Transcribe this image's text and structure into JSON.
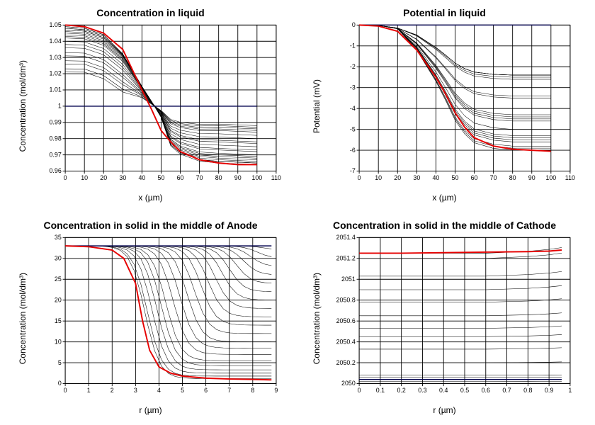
{
  "layout": {
    "cols": 2,
    "rows": 2,
    "figsize": [
      840,
      600
    ]
  },
  "colors": {
    "background": "#ffffff",
    "axis": "#000000",
    "grid": "#cccccc",
    "initial_line": "#00004d",
    "final_line": "#e60000",
    "series": "#000000"
  },
  "fonts": {
    "title_size": 14,
    "title_weight": "bold",
    "label_size": 12,
    "tick_size": 10
  },
  "panels": [
    {
      "id": "conc_liquid",
      "title": "Concentration in liquid",
      "xlabel": "x (µm)",
      "ylabel": "Concentration (mol/dm³)",
      "xlim": [
        0,
        110
      ],
      "ylim": [
        0.96,
        1.05
      ],
      "xticks": [
        0,
        10,
        20,
        30,
        40,
        50,
        60,
        70,
        80,
        90,
        100,
        110
      ],
      "yticks": [
        0.96,
        0.97,
        0.98,
        0.99,
        1,
        1.01,
        1.02,
        1.03,
        1.04,
        1.05
      ],
      "initial": {
        "x": [
          0,
          100
        ],
        "y": [
          1.0,
          1.0
        ],
        "color": "#00004d",
        "width": 1.6
      },
      "final": {
        "x": [
          0,
          10,
          20,
          30,
          40,
          45,
          50,
          55,
          60,
          70,
          80,
          90,
          100
        ],
        "y": [
          1.05,
          1.049,
          1.045,
          1.035,
          1.01,
          0.998,
          0.985,
          0.978,
          0.972,
          0.967,
          0.965,
          0.964,
          0.964
        ],
        "color": "#e60000",
        "width": 2.2
      },
      "series_count": 20,
      "series_endpoints": {
        "left": [
          1.021,
          1.023,
          1.026,
          1.028,
          1.031,
          1.033,
          1.036,
          1.038,
          1.04,
          1.042,
          1.043,
          1.044,
          1.045,
          1.046,
          1.047,
          1.047,
          1.048,
          1.048,
          1.049,
          1.049
        ],
        "right": [
          0.988,
          0.987,
          0.986,
          0.985,
          0.984,
          0.982,
          0.98,
          0.978,
          0.977,
          0.975,
          0.973,
          0.972,
          0.97,
          0.969,
          0.968,
          0.967,
          0.966,
          0.965,
          0.965,
          0.964
        ]
      }
    },
    {
      "id": "pot_liquid",
      "title": "Potential in liquid",
      "xlabel": "x (µm)",
      "ylabel": "Potential (mV)",
      "xlim": [
        0,
        110
      ],
      "ylim": [
        -7,
        0
      ],
      "xticks": [
        0,
        10,
        20,
        30,
        40,
        50,
        60,
        70,
        80,
        90,
        100,
        110
      ],
      "yticks": [
        -7,
        -6,
        -5,
        -4,
        -3,
        -2,
        -1,
        0
      ],
      "initial": {
        "x": [
          0,
          100
        ],
        "y": [
          0,
          0
        ],
        "color": "#00004d",
        "width": 1.6
      },
      "final": {
        "x": [
          0,
          10,
          20,
          30,
          40,
          45,
          50,
          55,
          60,
          70,
          80,
          90,
          100
        ],
        "y": [
          0,
          -0.05,
          -0.3,
          -1.2,
          -2.5,
          -3.3,
          -4.2,
          -4.9,
          -5.4,
          -5.8,
          -5.95,
          -6.0,
          -6.05
        ],
        "color": "#e60000",
        "width": 2.2
      },
      "series_count": 20,
      "series_plateau": [
        -2.4,
        -2.4,
        -2.4,
        -2.4,
        -2.5,
        -2.6,
        -3.4,
        -3.5,
        -4.3,
        -4.4,
        -4.5,
        -4.6,
        -5.0,
        -5.3,
        -5.4,
        -5.5,
        -5.6,
        -5.8,
        -5.9,
        -6.0
      ]
    },
    {
      "id": "conc_anode",
      "title": "Concentration in solid in the middle of Anode",
      "xlabel": "r (µm)",
      "ylabel": "Concentration (mol/dm³)",
      "xlim": [
        0,
        9
      ],
      "ylim": [
        0,
        35
      ],
      "xticks": [
        0,
        1,
        2,
        3,
        4,
        5,
        6,
        7,
        8,
        9
      ],
      "yticks": [
        0,
        5,
        10,
        15,
        20,
        25,
        30,
        35
      ],
      "initial": {
        "x": [
          0,
          8.8
        ],
        "y": [
          33,
          33
        ],
        "color": "#00004d",
        "width": 1.6
      },
      "final": {
        "x": [
          0,
          1,
          2,
          2.5,
          3,
          3.3,
          3.6,
          4,
          4.5,
          5,
          6,
          7,
          8,
          8.8
        ],
        "y": [
          33,
          32.8,
          32,
          30,
          24,
          15,
          8,
          4,
          2.5,
          1.8,
          1.3,
          1.1,
          1.0,
          0.9
        ],
        "color": "#e60000",
        "width": 2.2
      },
      "series_count": 20,
      "series_x50": [
        8.5,
        8.2,
        7.9,
        7.6,
        7.3,
        7.0,
        6.7,
        6.4,
        6.1,
        5.8,
        5.5,
        5.2,
        4.9,
        4.6,
        4.3,
        4.1,
        3.9,
        3.7,
        3.5,
        3.4
      ],
      "series_right": [
        32,
        30,
        28,
        26,
        24,
        22,
        20,
        18,
        16,
        14,
        12,
        10,
        8.5,
        7,
        5.5,
        4.3,
        3.3,
        2.5,
        1.8,
        1.2
      ]
    },
    {
      "id": "conc_cathode",
      "title": "Concentration in solid in the middle of Cathode",
      "xlabel": "r (µm)",
      "ylabel": "Concentration (mol/dm³)",
      "xlim": [
        0,
        1
      ],
      "ylim": [
        2050,
        2051.4
      ],
      "xticks": [
        0,
        0.1,
        0.2,
        0.3,
        0.4,
        0.5,
        0.6,
        0.7,
        0.8,
        0.9,
        1
      ],
      "yticks": [
        2050,
        2050.2,
        2050.4,
        2050.6,
        2050.8,
        2051,
        2051.2,
        2051.4
      ],
      "initial": {
        "x": [
          0,
          0.96
        ],
        "y": [
          2050.04,
          2050.04
        ],
        "color": "#00004d",
        "width": 1.6
      },
      "final": {
        "x": [
          0,
          0.2,
          0.4,
          0.6,
          0.8,
          0.9,
          0.96
        ],
        "y": [
          2051.25,
          2051.25,
          2051.255,
          2051.26,
          2051.265,
          2051.27,
          2051.28
        ],
        "color": "#e60000",
        "width": 2.2
      },
      "series_count": 14,
      "series_levels": [
        2050.02,
        2050.04,
        2050.06,
        2050.08,
        2050.2,
        2050.33,
        2050.45,
        2050.53,
        2050.65,
        2050.78,
        2050.9,
        2051.03,
        2051.2,
        2051.25
      ]
    }
  ]
}
